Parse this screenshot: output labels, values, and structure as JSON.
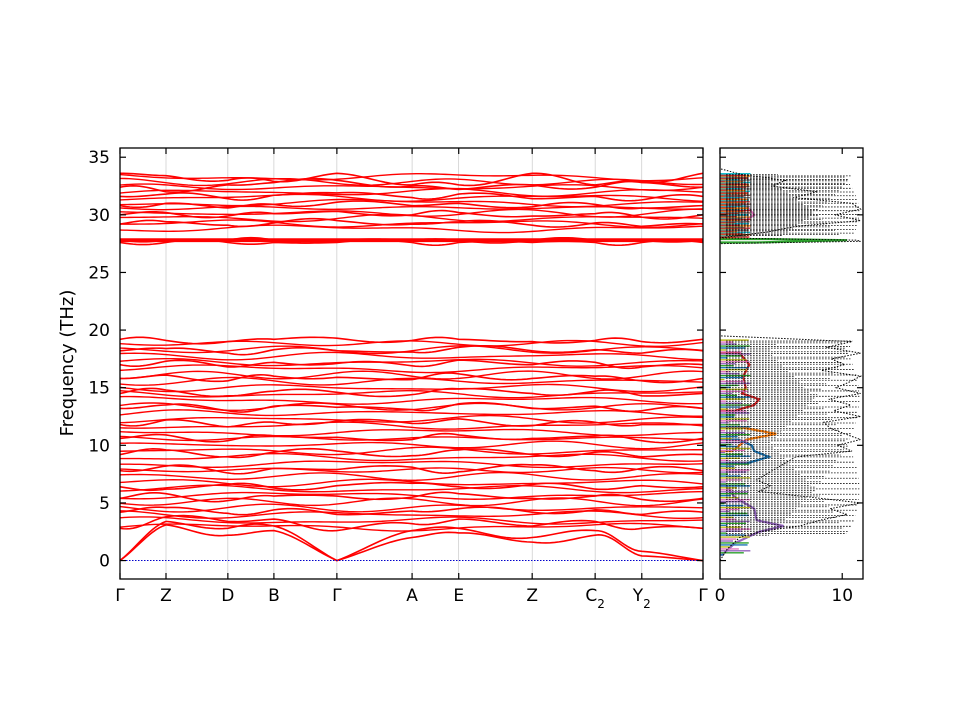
{
  "chart_data": [
    {
      "type": "line",
      "ylabel": "Frequency (THz)",
      "ylim": [
        -1.6,
        35.8
      ],
      "y_ticks": [
        0,
        5,
        10,
        15,
        20,
        25,
        30,
        35
      ],
      "x_ticks": [
        {
          "label": "Γ",
          "sub": ""
        },
        {
          "label": "Z",
          "sub": ""
        },
        {
          "label": "D",
          "sub": ""
        },
        {
          "label": "B",
          "sub": ""
        },
        {
          "label": "Γ",
          "sub": ""
        },
        {
          "label": "A",
          "sub": ""
        },
        {
          "label": "E",
          "sub": ""
        },
        {
          "label": "Z",
          "sub": ""
        },
        {
          "label": "C",
          "sub": "2"
        },
        {
          "label": "Y",
          "sub": "2"
        },
        {
          "label": "Γ",
          "sub": ""
        }
      ],
      "x_tick_positions": [
        0,
        0.0789,
        0.185,
        0.264,
        0.372,
        0.501,
        0.581,
        0.707,
        0.815,
        0.895,
        1.0
      ],
      "band_color": "#ff0000",
      "zero_line_color": "#0000cc",
      "bands": {
        "low_manifold_range": [
          0,
          19.4
        ],
        "gap": [
          19.4,
          27.6
        ],
        "high_manifold_range": [
          27.6,
          33.8
        ],
        "flat_band_cluster": 27.8
      },
      "series": [
        {
          "values": [
            0,
            3.1,
            2.2,
            2.6,
            0,
            2.0,
            2.4,
            1.6,
            2.2,
            0.4,
            0
          ]
        },
        {
          "values": [
            0,
            3.4,
            2.8,
            3.0,
            0,
            2.6,
            2.8,
            2.0,
            2.6,
            0.8,
            0
          ]
        },
        {
          "values": [
            2.8,
            3.8,
            3.4,
            3.6,
            2.6,
            3.2,
            3.6,
            3.0,
            3.4,
            2.8,
            2.8
          ]
        },
        {
          "values": [
            4.2,
            4.6,
            4.1,
            4.4,
            4.0,
            4.3,
            4.5,
            4.2,
            4.4,
            4.0,
            4.2
          ]
        },
        {
          "values": [
            5.4,
            5.8,
            5.2,
            5.6,
            5.6,
            5.5,
            5.8,
            5.4,
            5.6,
            5.3,
            5.4
          ]
        },
        {
          "values": [
            6.4,
            6.2,
            6.6,
            6.3,
            6.5,
            6.7,
            6.4,
            6.6,
            6.2,
            6.5,
            6.4
          ]
        },
        {
          "values": [
            7.8,
            8.2,
            7.6,
            8.0,
            7.9,
            8.1,
            7.7,
            8.3,
            7.8,
            8.0,
            7.8
          ]
        },
        {
          "values": [
            9.2,
            9.6,
            9.0,
            9.4,
            9.5,
            9.1,
            9.6,
            9.2,
            9.4,
            9.0,
            9.2
          ]
        },
        {
          "values": [
            10.6,
            10.9,
            10.4,
            10.8,
            10.7,
            10.5,
            10.9,
            10.6,
            10.8,
            10.4,
            10.6
          ]
        },
        {
          "values": [
            11.8,
            12.2,
            11.6,
            12.0,
            12.1,
            11.9,
            12.3,
            11.7,
            12.0,
            11.8,
            11.8
          ]
        },
        {
          "values": [
            13.2,
            13.5,
            13.0,
            13.4,
            13.3,
            13.1,
            13.6,
            13.2,
            13.4,
            13.0,
            13.2
          ]
        },
        {
          "values": [
            14.5,
            14.8,
            14.3,
            14.7,
            14.6,
            14.4,
            14.9,
            14.5,
            14.7,
            14.3,
            14.5
          ]
        },
        {
          "values": [
            15.8,
            16.1,
            15.6,
            16.0,
            15.9,
            15.7,
            16.2,
            15.8,
            16.0,
            15.6,
            15.8
          ]
        },
        {
          "values": [
            17.0,
            17.3,
            16.8,
            17.2,
            17.1,
            16.9,
            17.4,
            17.0,
            17.2,
            16.8,
            17.0
          ]
        },
        {
          "values": [
            18.2,
            18.4,
            18.0,
            18.3,
            18.2,
            18.1,
            18.5,
            18.2,
            18.3,
            18.0,
            18.2
          ]
        },
        {
          "values": [
            19.2,
            19.1,
            19.0,
            19.2,
            19.3,
            19.1,
            19.2,
            19.0,
            19.1,
            19.0,
            19.2
          ]
        },
        {
          "values": [
            27.8,
            27.8,
            27.8,
            27.8,
            27.8,
            27.8,
            27.8,
            27.8,
            27.8,
            27.8,
            27.8
          ]
        },
        {
          "values": [
            27.6,
            27.6,
            27.6,
            27.6,
            27.6,
            27.6,
            27.6,
            27.6,
            27.6,
            27.6,
            27.6
          ]
        },
        {
          "values": [
            29.2,
            29.4,
            29.1,
            29.3,
            29.5,
            29.2,
            29.4,
            29.1,
            29.3,
            29.0,
            29.2
          ]
        },
        {
          "values": [
            30.0,
            30.2,
            29.9,
            30.1,
            30.3,
            30.0,
            30.2,
            29.9,
            30.1,
            29.8,
            30.0
          ]
        },
        {
          "values": [
            30.8,
            31.0,
            30.6,
            30.9,
            31.1,
            30.8,
            31.0,
            30.7,
            30.9,
            30.6,
            30.8
          ]
        },
        {
          "values": [
            31.6,
            31.8,
            31.4,
            31.7,
            31.9,
            31.5,
            31.8,
            31.4,
            31.6,
            31.3,
            31.6
          ]
        },
        {
          "values": [
            32.4,
            32.0,
            32.6,
            32.8,
            33.0,
            32.5,
            32.2,
            32.6,
            32.4,
            32.8,
            32.4
          ]
        },
        {
          "values": [
            33.6,
            33.4,
            33.0,
            32.9,
            33.6,
            32.6,
            32.6,
            33.6,
            32.6,
            32.9,
            33.6
          ]
        }
      ]
    },
    {
      "type": "area",
      "xlim": [
        0,
        11.7
      ],
      "x_ticks": [
        0,
        10
      ],
      "ylim": [
        -1.6,
        35.8
      ],
      "total_dos_style": "black dotted",
      "total_dos": {
        "y": [
          0,
          1,
          2,
          2.5,
          3,
          3.5,
          4,
          4.5,
          5,
          5.5,
          6,
          6.5,
          7,
          8,
          9,
          9.5,
          10,
          10.5,
          11,
          11.5,
          12,
          12.5,
          13,
          13.5,
          14,
          14.5,
          15,
          15.5,
          16,
          16.5,
          17,
          17.5,
          18,
          18.5,
          19,
          19.3,
          19.5,
          27.5,
          27.7,
          27.8,
          28,
          28.5,
          29,
          29.5,
          30,
          30.5,
          31,
          31.5,
          32,
          32.5,
          33,
          33.5,
          34
        ],
        "x": [
          0,
          0.6,
          1.6,
          3.2,
          6.5,
          8.2,
          10.4,
          9.0,
          11.5,
          7.4,
          3.2,
          4.1,
          3.0,
          4.6,
          6.2,
          10.8,
          9.6,
          11.5,
          10.2,
          9.0,
          8.5,
          11.5,
          9.3,
          10.7,
          8.9,
          11.5,
          9.5,
          10.6,
          11.5,
          8.3,
          10.2,
          9.1,
          11.5,
          8.7,
          10.8,
          4.5,
          0,
          0,
          11.5,
          11.2,
          0,
          3.8,
          6.2,
          11.5,
          9.4,
          11.5,
          10.8,
          6.0,
          8.0,
          4.2,
          5.4,
          1.8,
          0
        ]
      },
      "partial_dos_colors": [
        "#1f77b4",
        "#ff7f0e",
        "#2ca02c",
        "#d62728",
        "#9467bd",
        "#8c564b",
        "#e377c2",
        "#7f7f7f",
        "#bcbd22",
        "#17becf"
      ],
      "partial_dos": [
        {
          "color": "#9467bd",
          "y": [
            0.5,
            1.5,
            2.5,
            3,
            3.5,
            4.5,
            5.5,
            6.5
          ],
          "x": [
            0.2,
            1.2,
            3.2,
            5.2,
            3.0,
            2.8,
            1.2,
            0.5
          ]
        },
        {
          "color": "#ff7f0e",
          "y": [
            9.5,
            10,
            10.5,
            11,
            11.5
          ],
          "x": [
            1.0,
            1.6,
            2.2,
            4.6,
            2.0
          ]
        },
        {
          "color": "#2ca02c",
          "y": [
            27.6,
            27.7,
            27.8,
            27.9
          ],
          "x": [
            3.0,
            6.2,
            10.4,
            4.0
          ]
        },
        {
          "color": "#d62728",
          "y": [
            13,
            13.5,
            14,
            14.5,
            15,
            16,
            17,
            18
          ],
          "x": [
            1.2,
            2.8,
            3.2,
            1.8,
            2.1,
            1.9,
            2.4,
            1.6
          ]
        },
        {
          "color": "#1f77b4",
          "y": [
            8.5,
            9,
            9.5,
            10,
            10.5
          ],
          "x": [
            2.4,
            4.0,
            2.8,
            2.6,
            1.5
          ]
        },
        {
          "color": "#e377c2",
          "y": [
            29,
            29.5,
            30,
            30.5,
            31,
            31.5,
            32
          ],
          "x": [
            1.1,
            2.1,
            2.8,
            2.4,
            1.9,
            1.6,
            0.9
          ]
        }
      ]
    }
  ]
}
